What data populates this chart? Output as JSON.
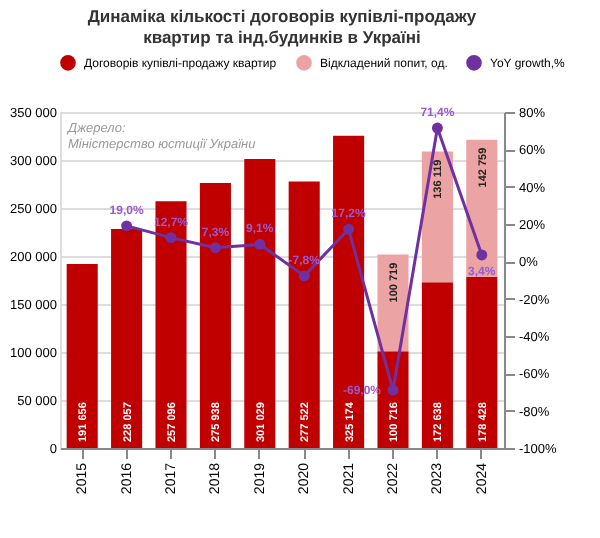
{
  "chart_data": {
    "type": "bar",
    "title": [
      "Динаміка кількості договорів купівлі-продажу",
      "квартир та інд.будинків в Україні"
    ],
    "categories": [
      "2015",
      "2016",
      "2017",
      "2018",
      "2019",
      "2020",
      "2021",
      "2022",
      "2023",
      "2024"
    ],
    "stacked": true,
    "series": [
      {
        "name": "Договорів купівлі-продажу квартир",
        "color": "#c00000",
        "values": [
          191656,
          228057,
          257096,
          275938,
          301029,
          277522,
          325174,
          100716,
          172638,
          178428
        ],
        "value_labels": [
          "191 656",
          "228 057",
          "257 096",
          "275 938",
          "301 029",
          "277 522",
          "325 174",
          "100 716",
          "172 638",
          "178 428"
        ]
      },
      {
        "name": "Відкладений попит, од.",
        "color": "#eba3a3",
        "values": [
          null,
          null,
          null,
          null,
          null,
          null,
          null,
          100719,
          136119,
          142759
        ],
        "value_labels": [
          null,
          null,
          null,
          null,
          null,
          null,
          null,
          "100 719",
          "136 119",
          "142 759"
        ]
      },
      {
        "name": "YoY growth,%",
        "type": "line",
        "axis": "y2",
        "color": "#7030a0",
        "marker": "circle",
        "values": [
          null,
          19.0,
          12.7,
          7.3,
          9.1,
          -7.8,
          17.2,
          -69.0,
          71.4,
          3.4
        ],
        "value_labels": [
          null,
          "19,0%",
          "12,7%",
          "7,3%",
          "9,1%",
          "-7,8%",
          "17,2%",
          "-69,0%",
          "71,4%",
          "3,4%"
        ]
      }
    ],
    "ylim": [
      0,
      350000
    ],
    "yticks": [
      0,
      {
        "value": 50000,
        "label": "50 000"
      },
      {
        "value": 100000,
        "label": "100 000"
      },
      {
        "value": 150000,
        "label": "150 000"
      },
      {
        "value": 200000,
        "label": "200 000"
      },
      {
        "value": 250000,
        "label": "250 000"
      },
      {
        "value": 300000,
        "label": "300 000"
      },
      {
        "value": 350000,
        "label": "350 000"
      }
    ],
    "y2lim": [
      -100,
      80
    ],
    "y2ticks": [
      {
        "value": -100,
        "label": "-100%"
      },
      {
        "value": -80,
        "label": "-80%"
      },
      {
        "value": -60,
        "label": "-60%"
      },
      {
        "value": -40,
        "label": "-40%"
      },
      {
        "value": -20,
        "label": "-20%"
      },
      {
        "value": 0,
        "label": "0%"
      },
      {
        "value": 20,
        "label": "20%"
      },
      {
        "value": 40,
        "label": "40%"
      },
      {
        "value": 60,
        "label": "60%"
      },
      {
        "value": 80,
        "label": "80%"
      }
    ],
    "annotations": [
      "Джерело:",
      "Міністерство юстиції України"
    ],
    "grid": "y",
    "legend": "top"
  }
}
